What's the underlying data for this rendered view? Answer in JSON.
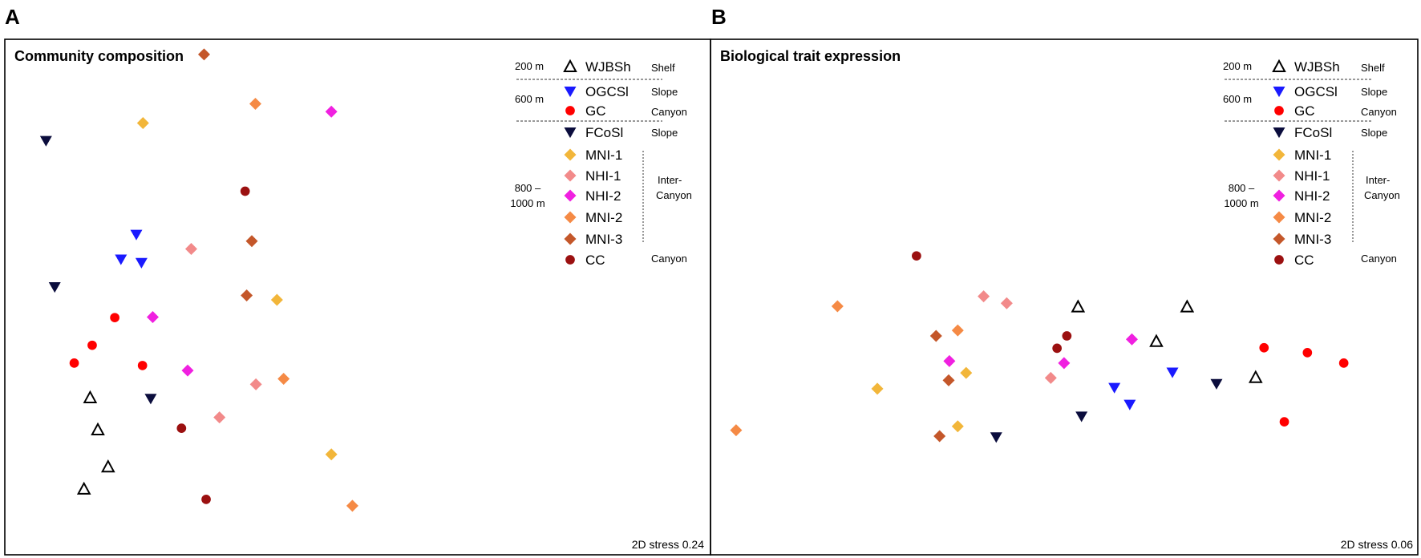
{
  "chart_data": [
    {
      "type": "scatter",
      "panel_label": "A",
      "title": "Community composition",
      "stress": "2D stress 0.24",
      "xlim": [
        0,
        100
      ],
      "ylim": [
        0,
        100
      ],
      "xlabel": "",
      "ylabel": "",
      "points": [
        {
          "group": "WJBSh",
          "x": 16.0,
          "y": 31.5
        },
        {
          "group": "WJBSh",
          "x": 17.5,
          "y": 25.0
        },
        {
          "group": "WJBSh",
          "x": 19.5,
          "y": 17.5
        },
        {
          "group": "WJBSh",
          "x": 14.8,
          "y": 13.0
        },
        {
          "group": "OGCSl",
          "x": 25.0,
          "y": 64.5
        },
        {
          "group": "OGCSl",
          "x": 22.0,
          "y": 59.5
        },
        {
          "group": "OGCSl",
          "x": 26.0,
          "y": 58.8
        },
        {
          "group": "GC",
          "x": 20.8,
          "y": 47.7
        },
        {
          "group": "GC",
          "x": 16.4,
          "y": 42.1
        },
        {
          "group": "GC",
          "x": 12.9,
          "y": 38.5
        },
        {
          "group": "GC",
          "x": 26.2,
          "y": 38.0
        },
        {
          "group": "FCoSl",
          "x": 7.4,
          "y": 83.5
        },
        {
          "group": "FCoSl",
          "x": 9.1,
          "y": 53.9
        },
        {
          "group": "FCoSl",
          "x": 27.8,
          "y": 31.3
        },
        {
          "group": "MNI-1",
          "x": 26.3,
          "y": 87.1
        },
        {
          "group": "MNI-1",
          "x": 52.4,
          "y": 51.3
        },
        {
          "group": "MNI-1",
          "x": 63.0,
          "y": 20.0
        },
        {
          "group": "NHI-1",
          "x": 35.7,
          "y": 61.6
        },
        {
          "group": "NHI-1",
          "x": 48.3,
          "y": 34.2
        },
        {
          "group": "NHI-1",
          "x": 41.2,
          "y": 27.5
        },
        {
          "group": "NHI-2",
          "x": 63.0,
          "y": 89.4
        },
        {
          "group": "NHI-2",
          "x": 28.2,
          "y": 47.8
        },
        {
          "group": "NHI-2",
          "x": 35.0,
          "y": 37.0
        },
        {
          "group": "MNI-2",
          "x": 48.2,
          "y": 91.0
        },
        {
          "group": "MNI-2",
          "x": 53.7,
          "y": 35.3
        },
        {
          "group": "MNI-2",
          "x": 67.1,
          "y": 9.6
        },
        {
          "group": "MNI-3",
          "x": 38.2,
          "y": 101.0
        },
        {
          "group": "MNI-3",
          "x": 47.5,
          "y": 63.2
        },
        {
          "group": "MNI-3",
          "x": 46.5,
          "y": 52.2
        },
        {
          "group": "CC",
          "x": 46.2,
          "y": 73.3
        },
        {
          "group": "CC",
          "x": 33.8,
          "y": 25.3
        },
        {
          "group": "CC",
          "x": 38.6,
          "y": 10.9
        }
      ]
    },
    {
      "type": "scatter",
      "panel_label": "B",
      "title": "Biological trait expression",
      "stress": "2D stress 0.06",
      "xlim": [
        0,
        100
      ],
      "ylim": [
        0,
        100
      ],
      "xlabel": "",
      "ylabel": "",
      "points": [
        {
          "group": "WJBSh",
          "x": 52.1,
          "y": 49.9
        },
        {
          "group": "WJBSh",
          "x": 67.7,
          "y": 49.9
        },
        {
          "group": "WJBSh",
          "x": 63.3,
          "y": 42.9
        },
        {
          "group": "WJBSh",
          "x": 77.5,
          "y": 35.6
        },
        {
          "group": "OGCSl",
          "x": 57.3,
          "y": 33.5
        },
        {
          "group": "OGCSl",
          "x": 59.5,
          "y": 30.1
        },
        {
          "group": "OGCSl",
          "x": 65.6,
          "y": 36.6
        },
        {
          "group": "GC",
          "x": 78.7,
          "y": 41.6
        },
        {
          "group": "GC",
          "x": 84.9,
          "y": 40.6
        },
        {
          "group": "GC",
          "x": 90.1,
          "y": 38.5
        },
        {
          "group": "GC",
          "x": 81.6,
          "y": 26.6
        },
        {
          "group": "FCoSl",
          "x": 52.6,
          "y": 27.7
        },
        {
          "group": "FCoSl",
          "x": 40.4,
          "y": 23.5
        },
        {
          "group": "FCoSl",
          "x": 71.9,
          "y": 34.3
        },
        {
          "group": "MNI-1",
          "x": 36.1,
          "y": 36.5
        },
        {
          "group": "MNI-1",
          "x": 23.4,
          "y": 33.3
        },
        {
          "group": "MNI-1",
          "x": 34.9,
          "y": 25.7
        },
        {
          "group": "NHI-1",
          "x": 38.6,
          "y": 52.0
        },
        {
          "group": "NHI-1",
          "x": 41.9,
          "y": 50.6
        },
        {
          "group": "NHI-1",
          "x": 48.2,
          "y": 35.5
        },
        {
          "group": "NHI-2",
          "x": 33.7,
          "y": 38.9
        },
        {
          "group": "NHI-2",
          "x": 50.1,
          "y": 38.5
        },
        {
          "group": "NHI-2",
          "x": 59.8,
          "y": 43.3
        },
        {
          "group": "MNI-2",
          "x": 17.7,
          "y": 50.0
        },
        {
          "group": "MNI-2",
          "x": 34.9,
          "y": 45.1
        },
        {
          "group": "MNI-2",
          "x": 3.2,
          "y": 24.9
        },
        {
          "group": "MNI-3",
          "x": 31.8,
          "y": 44.0
        },
        {
          "group": "MNI-3",
          "x": 33.6,
          "y": 35.0
        },
        {
          "group": "MNI-3",
          "x": 32.3,
          "y": 23.7
        },
        {
          "group": "CC",
          "x": 29.0,
          "y": 60.2
        },
        {
          "group": "CC",
          "x": 50.5,
          "y": 44.0
        },
        {
          "group": "CC",
          "x": 49.1,
          "y": 41.5
        }
      ]
    }
  ],
  "legend": {
    "depths": [
      "200 m",
      "600 m",
      "800 –",
      "1000 m"
    ],
    "regions": [
      "Shelf",
      "Slope",
      "Canyon",
      "Slope",
      "Inter-",
      "Canyon",
      "Canyon"
    ],
    "groups": [
      {
        "id": "WJBSh",
        "label": "WJBSh",
        "shape": "triangle-up-open",
        "color": "#000000"
      },
      {
        "id": "OGCSl",
        "label": "OGCSl",
        "shape": "triangle-down",
        "color": "#1a1aff"
      },
      {
        "id": "GC",
        "label": "GC",
        "shape": "circle",
        "color": "#ff0000"
      },
      {
        "id": "FCoSl",
        "label": "FCoSl",
        "shape": "triangle-down",
        "color": "#0b0d3d"
      },
      {
        "id": "MNI-1",
        "label": "MNI-1",
        "shape": "diamond",
        "color": "#f2b63a"
      },
      {
        "id": "NHI-1",
        "label": "NHI-1",
        "shape": "diamond",
        "color": "#f28a8a"
      },
      {
        "id": "NHI-2",
        "label": "NHI-2",
        "shape": "diamond",
        "color": "#f020e0"
      },
      {
        "id": "MNI-2",
        "label": "MNI-2",
        "shape": "diamond",
        "color": "#f58a45"
      },
      {
        "id": "MNI-3",
        "label": "MNI-3",
        "shape": "diamond",
        "color": "#c4572a"
      },
      {
        "id": "CC",
        "label": "CC",
        "shape": "circle",
        "color": "#9b1010"
      }
    ]
  }
}
